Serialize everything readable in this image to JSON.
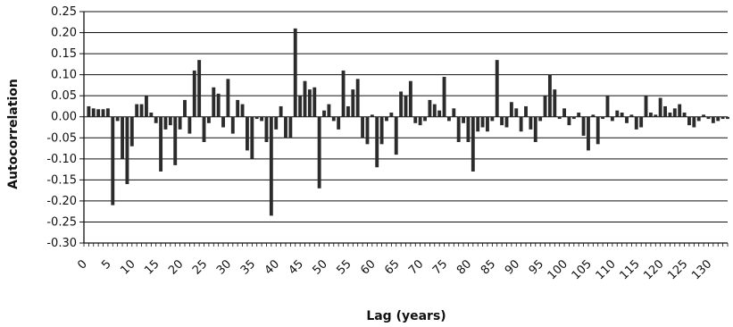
{
  "chart_data": {
    "type": "bar",
    "title": "",
    "xlabel": "Lag (years)",
    "ylabel": "Autocorrelation",
    "ylim": [
      -0.3,
      0.25
    ],
    "xlim": [
      0,
      134
    ],
    "grid": true,
    "legend": "none",
    "y_ticks": [
      "0.25",
      "0.20",
      "0.15",
      "0.10",
      "0.05",
      "0.00",
      "-0.05",
      "-0.10",
      "-0.15",
      "-0.20",
      "-0.25",
      "-0.30"
    ],
    "y_tick_values": [
      0.25,
      0.2,
      0.15,
      0.1,
      0.05,
      0.0,
      -0.05,
      -0.1,
      -0.15,
      -0.2,
      -0.25,
      -0.3
    ],
    "x_ticks": [
      "0",
      "5",
      "10",
      "15",
      "20",
      "25",
      "30",
      "35",
      "40",
      "45",
      "50",
      "55",
      "60",
      "65",
      "70",
      "75",
      "80",
      "85",
      "90",
      "95",
      "100",
      "105",
      "110",
      "115",
      "120",
      "125",
      "130"
    ],
    "x_tick_values": [
      0,
      5,
      10,
      15,
      20,
      25,
      30,
      35,
      40,
      45,
      50,
      55,
      60,
      65,
      70,
      75,
      80,
      85,
      90,
      95,
      100,
      105,
      110,
      115,
      120,
      125,
      130
    ],
    "bar_color": "#2b2b2b",
    "lags": [
      1,
      2,
      3,
      4,
      5,
      6,
      7,
      8,
      9,
      10,
      11,
      12,
      13,
      14,
      15,
      16,
      17,
      18,
      19,
      20,
      21,
      22,
      23,
      24,
      25,
      26,
      27,
      28,
      29,
      30,
      31,
      32,
      33,
      34,
      35,
      36,
      37,
      38,
      39,
      40,
      41,
      42,
      43,
      44,
      45,
      46,
      47,
      48,
      49,
      50,
      51,
      52,
      53,
      54,
      55,
      56,
      57,
      58,
      59,
      60,
      61,
      62,
      63,
      64,
      65,
      66,
      67,
      68,
      69,
      70,
      71,
      72,
      73,
      74,
      75,
      76,
      77,
      78,
      79,
      80,
      81,
      82,
      83,
      84,
      85,
      86,
      87,
      88,
      89,
      90,
      91,
      92,
      93,
      94,
      95,
      96,
      97,
      98,
      99,
      100,
      101,
      102,
      103,
      104,
      105,
      106,
      107,
      108,
      109,
      110,
      111,
      112,
      113,
      114,
      115,
      116,
      117,
      118,
      119,
      120,
      121,
      122,
      123,
      124,
      125,
      126,
      127,
      128,
      129,
      130,
      131,
      132,
      133,
      134
    ],
    "values": [
      0.025,
      0.02,
      0.018,
      0.018,
      0.02,
      -0.21,
      -0.01,
      -0.1,
      -0.16,
      -0.07,
      0.03,
      0.03,
      0.05,
      0.01,
      -0.015,
      -0.13,
      -0.03,
      -0.02,
      -0.115,
      -0.03,
      0.04,
      -0.04,
      0.11,
      0.135,
      -0.06,
      -0.015,
      0.07,
      0.055,
      -0.025,
      0.09,
      -0.04,
      0.04,
      0.03,
      -0.08,
      -0.1,
      -0.005,
      -0.01,
      -0.06,
      -0.235,
      -0.03,
      0.025,
      -0.05,
      -0.05,
      0.21,
      0.05,
      0.085,
      0.065,
      0.07,
      -0.17,
      0.015,
      0.03,
      -0.01,
      -0.03,
      0.11,
      0.025,
      0.065,
      0.09,
      -0.05,
      -0.065,
      0.005,
      -0.12,
      -0.065,
      -0.01,
      0.01,
      -0.09,
      0.06,
      0.05,
      0.085,
      -0.015,
      -0.02,
      -0.01,
      0.04,
      0.03,
      0.015,
      0.095,
      -0.01,
      0.02,
      -0.06,
      -0.015,
      -0.06,
      -0.13,
      -0.035,
      -0.025,
      -0.035,
      -0.01,
      0.135,
      -0.02,
      -0.025,
      0.035,
      0.02,
      -0.035,
      0.025,
      -0.03,
      -0.06,
      -0.01,
      0.05,
      0.1,
      0.065,
      -0.005,
      0.02,
      -0.02,
      -0.005,
      0.01,
      -0.045,
      -0.08,
      0.005,
      -0.065,
      -0.005,
      0.05,
      -0.01,
      0.015,
      0.01,
      -0.015,
      0.005,
      -0.03,
      -0.025,
      0.05,
      0.01,
      0.005,
      0.045,
      0.025,
      0.01,
      0.02,
      0.03,
      0.01,
      -0.02,
      -0.025,
      -0.01,
      0.005,
      -0.005,
      -0.015,
      -0.01,
      -0.005,
      -0.005
    ]
  }
}
